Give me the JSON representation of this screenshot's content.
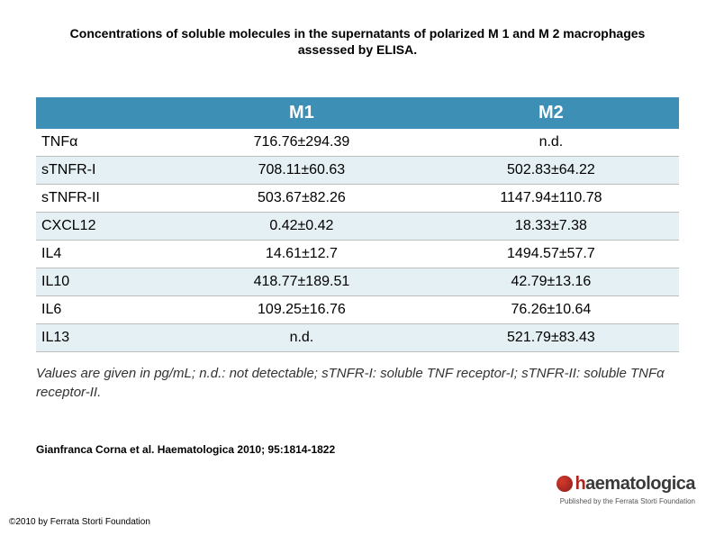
{
  "title_line1": "Concentrations of soluble molecules in the supernatants of polarized M 1 and M 2 macrophages",
  "title_line2": "assessed by ELISA.",
  "table": {
    "header_bg": "#3d8fb5",
    "header_text_color": "#ffffff",
    "alt_row_bg": "#e5f0f4",
    "border_color": "#bcbcbc",
    "columns": [
      "",
      "M1",
      "M2"
    ],
    "rows": [
      {
        "alt": false,
        "label": "TNFα",
        "m1": "716.76±294.39",
        "m2": "n.d."
      },
      {
        "alt": true,
        "label": "sTNFR-I",
        "m1": "708.11±60.63",
        "m2": "502.83±64.22"
      },
      {
        "alt": false,
        "label": "sTNFR-II",
        "m1": "503.67±82.26",
        "m2": "1147.94±110.78"
      },
      {
        "alt": true,
        "label": "CXCL12",
        "m1": "0.42±0.42",
        "m2": "18.33±7.38"
      },
      {
        "alt": false,
        "label": "IL4",
        "m1": "14.61±12.7",
        "m2": "1494.57±57.7"
      },
      {
        "alt": true,
        "label": "IL10",
        "m1": "418.77±189.51",
        "m2": "42.79±13.16"
      },
      {
        "alt": false,
        "label": "IL6",
        "m1": "109.25±16.76",
        "m2": "76.26±10.64"
      },
      {
        "alt": true,
        "label": "IL13",
        "m1": "n.d.",
        "m2": "521.79±83.43"
      }
    ]
  },
  "footnote": "Values are given in pg/mL; n.d.: not detectable; sTNFR-I: soluble TNF  receptor-I; sTNFR-II: soluble TNFα receptor-II.",
  "citation": "Gianfranca Corna et al. Haematologica 2010; 95:1814-1822",
  "copyright": "©2010 by Ferrata Storti Foundation",
  "logo": {
    "prefix": "h",
    "rest": "aematologica",
    "subtitle": "Published by the Ferrata Storti Foundation"
  }
}
